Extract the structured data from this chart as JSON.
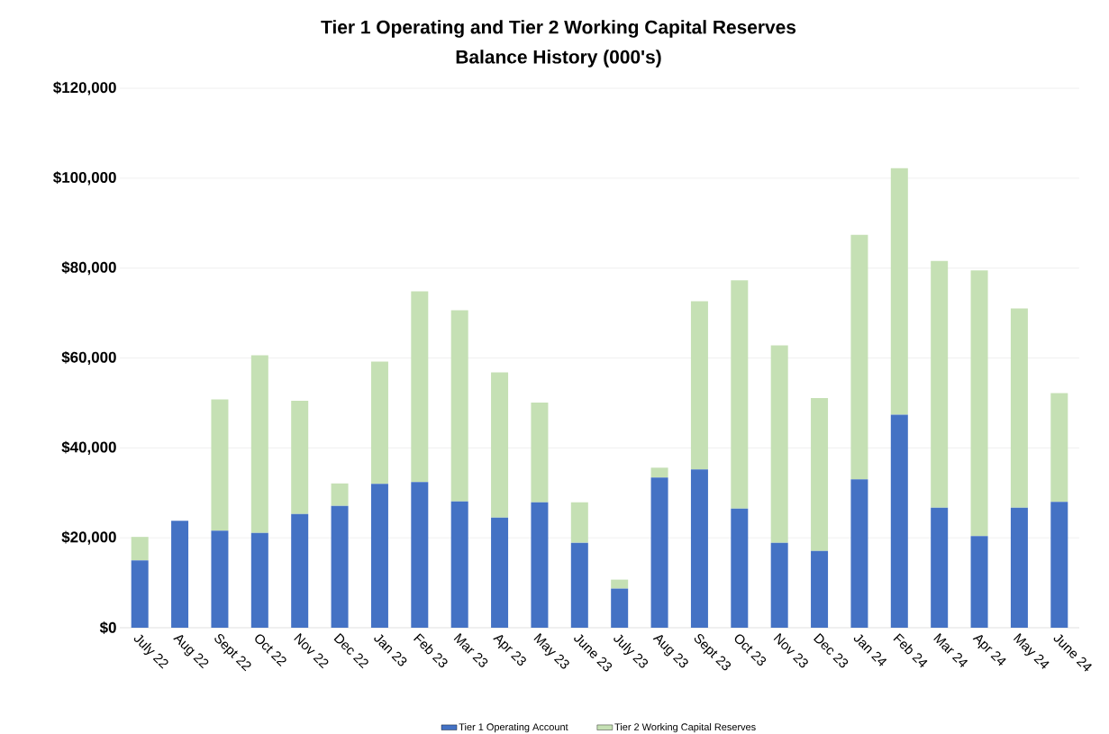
{
  "chart_data": {
    "type": "bar",
    "stacked": true,
    "title": "Tier 1 Operating and Tier 2 Working Capital Reserves",
    "subtitle": "Balance History (000's)",
    "categories": [
      "July 22",
      "Aug 22",
      "Sept 22",
      "Oct 22",
      "Nov 22",
      "Dec 22",
      "Jan 23",
      "Feb 23",
      "Mar 23",
      "Apr 23",
      "May 23",
      "June 23",
      "July 23",
      "Aug 23",
      "Sept 23",
      "Oct 23",
      "Nov 23",
      "Dec 23",
      "Jan 24",
      "Feb 24",
      "Mar 24",
      "Apr 24",
      "May 24",
      "June 24"
    ],
    "series": [
      {
        "name": "Tier 1 Operating Account",
        "color": "#4472c4",
        "values": [
          15000,
          23800,
          21600,
          21100,
          25300,
          27100,
          32000,
          32400,
          28100,
          24500,
          27900,
          18900,
          8700,
          33400,
          35200,
          26500,
          18900,
          17100,
          33000,
          47400,
          26700,
          20400,
          26700,
          28000
        ]
      },
      {
        "name": "Tier 2 Working Capital Reserves",
        "color": "#c5e0b4",
        "values": [
          5200,
          0,
          29200,
          39500,
          25200,
          5000,
          27200,
          42400,
          42500,
          32300,
          22200,
          9000,
          2000,
          2200,
          37400,
          50800,
          43900,
          34000,
          54400,
          54800,
          54900,
          59100,
          44300,
          24200
        ]
      }
    ],
    "ylim": [
      0,
      120000
    ],
    "yticks": [
      {
        "value": 0,
        "label": "$0"
      },
      {
        "value": 20000,
        "label": "$20,000"
      },
      {
        "value": 40000,
        "label": "$40,000"
      },
      {
        "value": 60000,
        "label": "$60,000"
      },
      {
        "value": 80000,
        "label": "$80,000"
      },
      {
        "value": 100000,
        "label": "$100,000"
      },
      {
        "value": 120000,
        "label": "$120,000"
      }
    ],
    "grid": "y",
    "legend": "bottom"
  }
}
